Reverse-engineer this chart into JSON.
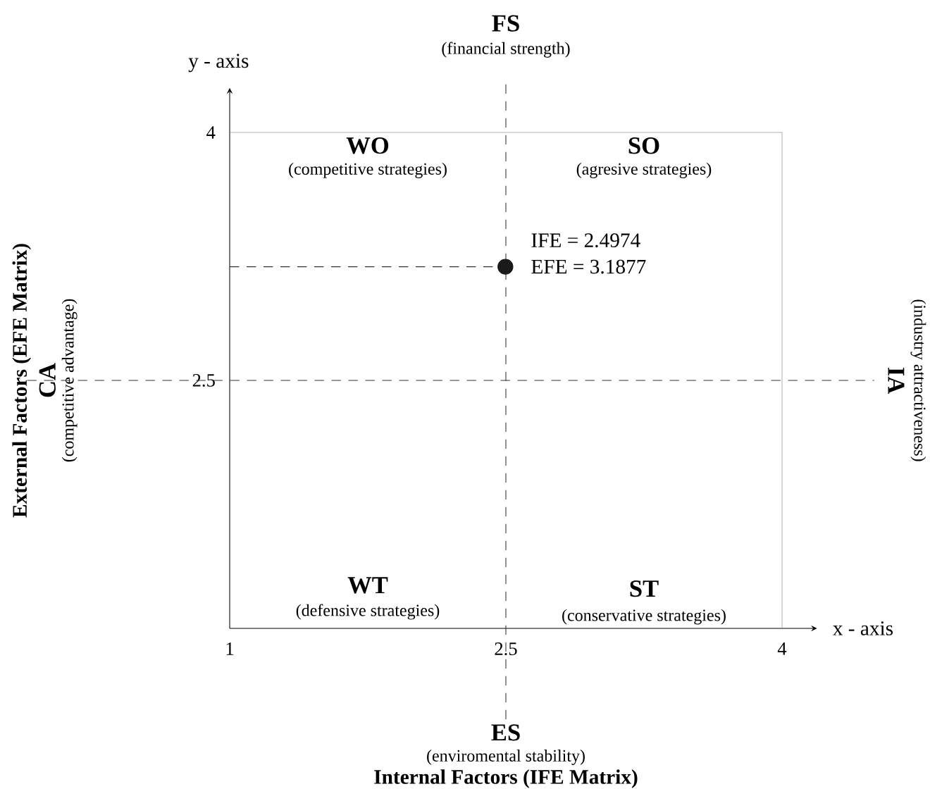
{
  "chart_data": {
    "type": "scatter",
    "x": [
      2.4974
    ],
    "series": [
      {
        "color": "#1a1a1a",
        "values": [
          3.1877
        ]
      }
    ],
    "xlim": [
      1,
      4
    ],
    "ylim": [
      1,
      4
    ],
    "xticks": [
      1,
      2.5,
      4
    ],
    "yticks": [
      2.5,
      4
    ],
    "grid": false,
    "ref_lines": [
      {
        "axis": "x",
        "value": 2.5,
        "line_style": "dashed",
        "color": "#333333"
      },
      {
        "axis": "y",
        "value": 2.5,
        "line_style": "dashed",
        "color": "#333333"
      },
      {
        "axis": "y",
        "value": 3.1877,
        "line_style": "dashed",
        "color": "#333333"
      }
    ],
    "annotations": [
      "FS",
      "(financial strength)",
      "ES",
      "(enviromental stability)",
      "CA",
      "(competitive advantage)",
      "IA",
      "(industry attractiveness)",
      "WO",
      "(competitive strategies)",
      "SO",
      "(agresive strategies)",
      "WT",
      "(defensive strategies)",
      "ST",
      "(conservative strategies)",
      "y - axis",
      "x - axis",
      "Internal Factors (IFE Matrix)",
      "External Factors (EFE Matrix)",
      {
        "text": "IFE = 2.4974",
        "x": 2.4974,
        "y": 3.1877
      },
      {
        "text": "EFE = 3.1877",
        "x": 2.4974,
        "y": 3.1877
      }
    ]
  }
}
